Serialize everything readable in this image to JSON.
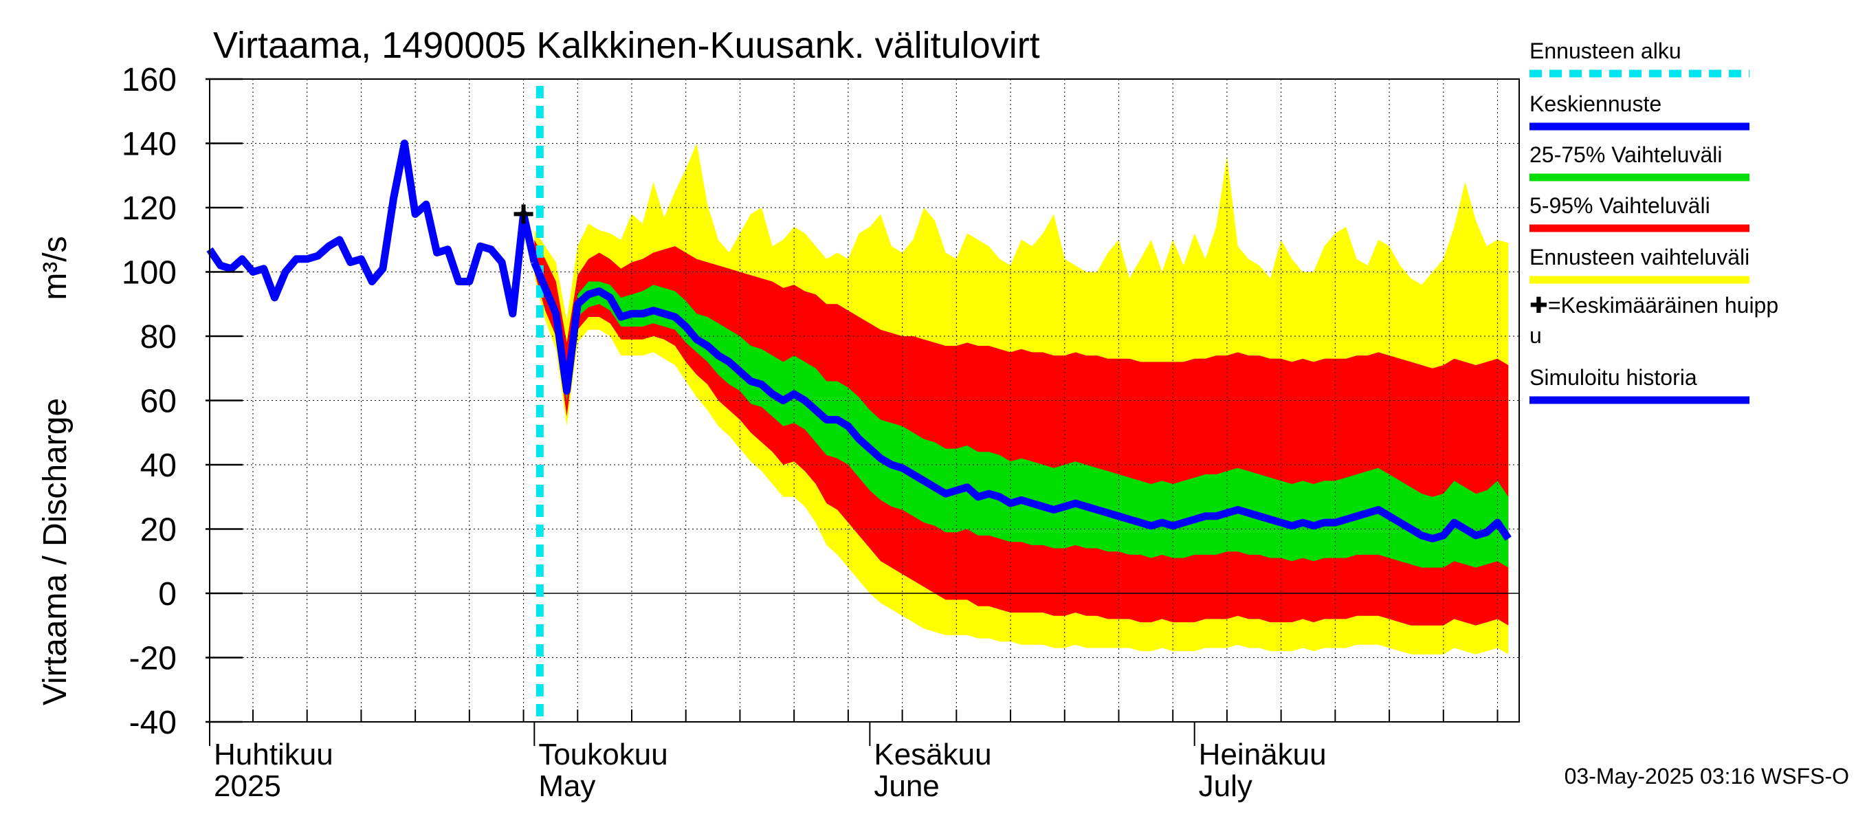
{
  "chart_data": {
    "type": "area",
    "title": "Virtaama, 1490005 Kalkkinen-Kuusank. välitulovirt",
    "ylabel": "Virtaama / Discharge",
    "yunit": "m³/s",
    "ylim": [
      -40,
      160
    ],
    "yticks": [
      -40,
      -20,
      0,
      20,
      40,
      60,
      80,
      100,
      120,
      140,
      160
    ],
    "grid": true,
    "x_start": "2025-04-01",
    "x_end": "2025-07-31",
    "forecast_start_day": 30,
    "months": [
      {
        "name": "Huhtikuu",
        "sub": "2025",
        "day": 0
      },
      {
        "name": "Toukokuu",
        "sub": "May",
        "day": 30
      },
      {
        "name": "Kesäkuu",
        "sub": "June",
        "day": 61
      },
      {
        "name": "Heinäkuu",
        "sub": "July",
        "day": 91
      }
    ],
    "peak_marker": {
      "day": 29,
      "value": 118
    },
    "history": {
      "days": [
        0,
        1,
        2,
        3,
        4,
        5,
        6,
        7,
        8,
        9,
        10,
        11,
        12,
        13,
        14,
        15,
        16,
        17,
        18,
        19,
        20,
        21,
        22,
        23,
        24,
        25,
        26,
        27,
        28,
        29,
        30
      ],
      "values": [
        107,
        102,
        101,
        104,
        100,
        101,
        92,
        100,
        104,
        104,
        105,
        108,
        110,
        103,
        104,
        97,
        101,
        123,
        140,
        118,
        121,
        106,
        107,
        97,
        97,
        108,
        107,
        103,
        87,
        118,
        103
      ]
    },
    "forecast": {
      "days": [
        30,
        31,
        32,
        33,
        34,
        35,
        36,
        37,
        38,
        39,
        40,
        41,
        42,
        43,
        44,
        45,
        46,
        47,
        48,
        49,
        50,
        51,
        52,
        53,
        54,
        55,
        56,
        57,
        58,
        59,
        60,
        61,
        62,
        63,
        64,
        65,
        66,
        67,
        68,
        69,
        70,
        71,
        72,
        73,
        74,
        75,
        76,
        77,
        78,
        79,
        80,
        81,
        82,
        83,
        84,
        85,
        86,
        87,
        88,
        89,
        90,
        91,
        92,
        93,
        94,
        95,
        96,
        97,
        98,
        99,
        100,
        101,
        102,
        103,
        104,
        105,
        106,
        107,
        108,
        109,
        110,
        111,
        112,
        113,
        114,
        115,
        116,
        117,
        118,
        119,
        120
      ],
      "median": [
        103,
        95,
        87,
        63,
        90,
        93,
        94,
        92,
        86,
        87,
        87,
        88,
        87,
        86,
        83,
        79,
        77,
        74,
        72,
        69,
        66,
        65,
        62,
        60,
        62,
        60,
        57,
        54,
        54,
        52,
        48,
        45,
        42,
        40,
        39,
        37,
        35,
        33,
        31,
        32,
        33,
        30,
        31,
        30,
        28,
        29,
        28,
        27,
        26,
        27,
        28,
        27,
        26,
        25,
        24,
        23,
        22,
        21,
        22,
        21,
        22,
        23,
        24,
        24,
        25,
        26,
        25,
        24,
        23,
        22,
        21,
        22,
        21,
        22,
        22,
        23,
        24,
        25,
        26,
        24,
        22,
        20,
        18,
        17,
        18,
        22,
        20,
        18,
        19,
        22,
        17
      ],
      "p25": [
        101,
        92,
        84,
        60,
        86,
        89,
        90,
        88,
        83,
        83,
        83,
        84,
        83,
        82,
        78,
        75,
        72,
        68,
        65,
        63,
        59,
        58,
        55,
        52,
        53,
        51,
        47,
        43,
        42,
        40,
        36,
        32,
        29,
        27,
        26,
        24,
        22,
        21,
        19,
        19,
        20,
        18,
        18,
        17,
        16,
        16,
        15,
        15,
        14,
        14,
        15,
        14,
        14,
        13,
        13,
        12,
        12,
        11,
        12,
        11,
        11,
        12,
        12,
        12,
        13,
        13,
        12,
        12,
        11,
        11,
        10,
        11,
        10,
        11,
        11,
        11,
        12,
        12,
        12,
        11,
        10,
        9,
        8,
        8,
        8,
        10,
        9,
        8,
        9,
        10,
        8
      ],
      "p75": [
        106,
        98,
        90,
        68,
        93,
        97,
        97,
        96,
        92,
        93,
        94,
        96,
        95,
        94,
        91,
        87,
        86,
        84,
        82,
        80,
        77,
        76,
        74,
        72,
        74,
        72,
        70,
        66,
        66,
        64,
        61,
        57,
        54,
        53,
        52,
        50,
        48,
        47,
        45,
        45,
        46,
        44,
        44,
        43,
        41,
        42,
        41,
        40,
        39,
        40,
        41,
        40,
        39,
        38,
        37,
        36,
        35,
        34,
        35,
        34,
        35,
        36,
        37,
        37,
        38,
        39,
        38,
        37,
        36,
        35,
        34,
        35,
        34,
        35,
        35,
        36,
        37,
        38,
        39,
        37,
        35,
        33,
        31,
        30,
        31,
        35,
        33,
        31,
        32,
        35,
        30
      ],
      "p5": [
        100,
        88,
        80,
        55,
        82,
        86,
        86,
        84,
        79,
        79,
        79,
        80,
        79,
        77,
        72,
        68,
        65,
        60,
        57,
        54,
        50,
        47,
        44,
        40,
        41,
        38,
        34,
        28,
        26,
        22,
        18,
        14,
        10,
        8,
        6,
        4,
        2,
        0,
        -2,
        -2,
        -2,
        -4,
        -4,
        -5,
        -6,
        -6,
        -6,
        -6,
        -7,
        -7,
        -6,
        -7,
        -7,
        -8,
        -8,
        -8,
        -9,
        -9,
        -8,
        -9,
        -9,
        -9,
        -8,
        -8,
        -8,
        -7,
        -8,
        -8,
        -9,
        -9,
        -9,
        -8,
        -9,
        -8,
        -8,
        -8,
        -7,
        -7,
        -7,
        -8,
        -9,
        -10,
        -10,
        -10,
        -10,
        -8,
        -9,
        -10,
        -9,
        -8,
        -10
      ],
      "p95": [
        110,
        104,
        97,
        78,
        99,
        104,
        106,
        104,
        101,
        103,
        104,
        106,
        107,
        108,
        106,
        104,
        103,
        102,
        101,
        100,
        99,
        98,
        97,
        95,
        96,
        94,
        93,
        90,
        90,
        88,
        86,
        84,
        82,
        81,
        80,
        80,
        79,
        78,
        77,
        77,
        78,
        77,
        77,
        76,
        75,
        76,
        75,
        75,
        74,
        74,
        75,
        74,
        74,
        73,
        73,
        73,
        72,
        72,
        72,
        72,
        72,
        73,
        73,
        74,
        74,
        75,
        74,
        74,
        73,
        73,
        72,
        73,
        72,
        73,
        73,
        73,
        74,
        74,
        75,
        74,
        73,
        72,
        71,
        70,
        71,
        73,
        72,
        71,
        72,
        73,
        71
      ],
      "min": [
        99,
        85,
        76,
        52,
        78,
        82,
        82,
        80,
        74,
        74,
        74,
        75,
        73,
        71,
        66,
        61,
        57,
        52,
        49,
        45,
        41,
        38,
        34,
        30,
        30,
        27,
        22,
        15,
        12,
        8,
        4,
        0,
        -3,
        -5,
        -7,
        -9,
        -11,
        -12,
        -13,
        -13,
        -13,
        -14,
        -14,
        -15,
        -15,
        -16,
        -16,
        -16,
        -17,
        -17,
        -16,
        -17,
        -17,
        -17,
        -17,
        -17,
        -18,
        -18,
        -17,
        -18,
        -18,
        -18,
        -17,
        -17,
        -17,
        -16,
        -17,
        -17,
        -18,
        -18,
        -18,
        -17,
        -18,
        -17,
        -17,
        -17,
        -16,
        -16,
        -16,
        -17,
        -18,
        -19,
        -19,
        -19,
        -19,
        -17,
        -18,
        -19,
        -18,
        -17,
        -19
      ],
      "max": [
        113,
        108,
        103,
        85,
        108,
        115,
        113,
        112,
        110,
        118,
        115,
        128,
        117,
        125,
        132,
        140,
        121,
        110,
        106,
        112,
        118,
        120,
        108,
        110,
        114,
        112,
        108,
        104,
        106,
        104,
        112,
        114,
        118,
        108,
        106,
        110,
        120,
        116,
        106,
        104,
        112,
        110,
        108,
        104,
        102,
        110,
        108,
        112,
        118,
        104,
        102,
        100,
        100,
        106,
        110,
        98,
        104,
        110,
        100,
        110,
        102,
        112,
        104,
        114,
        136,
        108,
        104,
        102,
        98,
        110,
        104,
        100,
        100,
        108,
        112,
        114,
        104,
        102,
        110,
        108,
        102,
        98,
        96,
        100,
        104,
        114,
        128,
        116,
        108,
        110,
        109
      ]
    },
    "legend": [
      {
        "label": "Ennusteen alku",
        "color": "#00e5ee",
        "style": "dashed"
      },
      {
        "label": "Keskiennuste",
        "color": "#0000ff",
        "style": "solid"
      },
      {
        "label": "25-75% Vaihteluväli",
        "color": "#00dd00",
        "style": "solid"
      },
      {
        "label": "5-95% Vaihteluväli",
        "color": "#ff0000",
        "style": "solid"
      },
      {
        "label": "Ennusteen vaihteluväli",
        "color": "#ffff00",
        "style": "solid"
      },
      {
        "label": "✚=Keskimääräinen huipp\nu",
        "color": "#000000",
        "style": "none"
      },
      {
        "label": "Simuloitu historia",
        "color": "#0000ff",
        "style": "solid"
      }
    ],
    "colors": {
      "forecast_start": "#00e5ee",
      "median": "#0000ff",
      "iqr": "#00dd00",
      "p5_95": "#ff0000",
      "range": "#ffff00",
      "history": "#0000ff"
    }
  },
  "footer": "03-May-2025 03:16 WSFS-O"
}
